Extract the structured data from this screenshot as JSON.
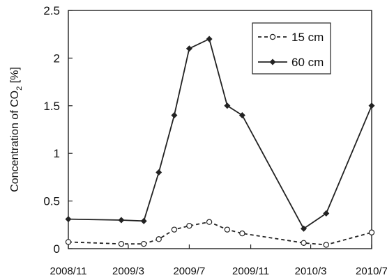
{
  "chart_data": {
    "type": "line",
    "title": "",
    "xlabel": "",
    "ylabel": {
      "prefix": "Concentration of CO",
      "subscript": "2",
      "suffix": " [%]"
    },
    "x_ticks": [
      "2008/11",
      "2009/3",
      "2009/7",
      "2009/11",
      "2010/3",
      "2010/7"
    ],
    "xlim": [
      "2008/11",
      "2010/7"
    ],
    "y_ticks": [
      "0",
      "0.5",
      "1",
      "1.5",
      "2",
      "2.5"
    ],
    "ylim": [
      0,
      2.5
    ],
    "grid": false,
    "legend_position": "top-right",
    "series": [
      {
        "name": "15 cm",
        "line_style": "dashed",
        "marker": "open-circle",
        "color": "#222222",
        "points": [
          {
            "x": "2008-11-01",
            "y": 0.07
          },
          {
            "x": "2009-02-15",
            "y": 0.05
          },
          {
            "x": "2009-04-01",
            "y": 0.05
          },
          {
            "x": "2009-05-01",
            "y": 0.1
          },
          {
            "x": "2009-06-01",
            "y": 0.2
          },
          {
            "x": "2009-07-01",
            "y": 0.24
          },
          {
            "x": "2009-08-10",
            "y": 0.28
          },
          {
            "x": "2009-09-15",
            "y": 0.2
          },
          {
            "x": "2009-10-15",
            "y": 0.16
          },
          {
            "x": "2010-02-15",
            "y": 0.06
          },
          {
            "x": "2010-04-01",
            "y": 0.04
          },
          {
            "x": "2010-07-01",
            "y": 0.17
          }
        ]
      },
      {
        "name": "60 cm",
        "line_style": "solid",
        "marker": "filled-diamond",
        "color": "#222222",
        "points": [
          {
            "x": "2008-11-01",
            "y": 0.31
          },
          {
            "x": "2009-02-15",
            "y": 0.3
          },
          {
            "x": "2009-04-01",
            "y": 0.29
          },
          {
            "x": "2009-05-01",
            "y": 0.8
          },
          {
            "x": "2009-06-01",
            "y": 1.4
          },
          {
            "x": "2009-07-01",
            "y": 2.1
          },
          {
            "x": "2009-08-10",
            "y": 2.2
          },
          {
            "x": "2009-09-15",
            "y": 1.5
          },
          {
            "x": "2009-10-15",
            "y": 1.4
          },
          {
            "x": "2010-02-15",
            "y": 0.21
          },
          {
            "x": "2010-04-01",
            "y": 0.37
          },
          {
            "x": "2010-07-01",
            "y": 1.5
          }
        ]
      }
    ]
  }
}
